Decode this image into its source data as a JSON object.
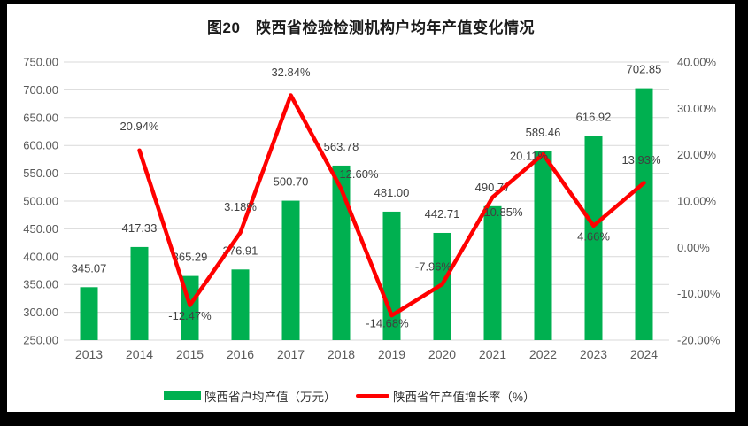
{
  "frame": {
    "background": "#000000",
    "canvas_background": "#ffffff"
  },
  "chart_data": {
    "type": "bar+line combo",
    "title": "图20　陕西省检验检测机构户均年产值变化情况",
    "categories": [
      "2013",
      "2014",
      "2015",
      "2016",
      "2017",
      "2018",
      "2019",
      "2020",
      "2021",
      "2022",
      "2023",
      "2024"
    ],
    "series": [
      {
        "name": "陕西省户均产值（万元）",
        "type": "bar",
        "axis": "left",
        "color": "#00B050",
        "values": [
          345.07,
          417.33,
          365.29,
          376.91,
          500.7,
          563.78,
          481.0,
          442.71,
          490.77,
          589.46,
          616.92,
          702.85
        ],
        "labels": [
          "345.07",
          "417.33",
          "365.29",
          "376.91",
          "500.70",
          "563.78",
          "481.00",
          "442.71",
          "490.77",
          "589.46",
          "616.92",
          "702.85"
        ]
      },
      {
        "name": "陕西省年产值增长率（%）",
        "type": "line",
        "axis": "right",
        "color": "#FF0000",
        "values": [
          null,
          20.94,
          -12.47,
          3.18,
          32.84,
          12.6,
          -14.68,
          -7.96,
          10.85,
          20.11,
          4.66,
          13.93
        ],
        "labels": [
          null,
          "20.94%",
          "-12.47%",
          "3.18%",
          "32.84%",
          "12.60%",
          "-14.68%",
          "-7.96%",
          "10.85%",
          "20.11%",
          "4.66%",
          "13.93%"
        ],
        "label_offsets": [
          null,
          [
            0,
            -27
          ],
          [
            0,
            12
          ],
          [
            0,
            -29
          ],
          [
            0,
            -26
          ],
          [
            20,
            -17
          ],
          [
            -5,
            9
          ],
          [
            -10,
            -20
          ],
          [
            12,
            17
          ],
          [
            -16,
            2
          ],
          [
            0,
            12
          ],
          [
            -3,
            -26
          ]
        ]
      }
    ],
    "left_axis": {
      "min": 250,
      "max": 750,
      "step": 50,
      "tick_labels": [
        "250.00",
        "300.00",
        "350.00",
        "400.00",
        "450.00",
        "500.00",
        "550.00",
        "600.00",
        "650.00",
        "700.00",
        "750.00"
      ]
    },
    "right_axis": {
      "min": -20,
      "max": 40,
      "step": 10,
      "tick_labels": [
        "-20.00%",
        "-10.00%",
        "0.00%",
        "10.00%",
        "20.00%",
        "30.00%",
        "40.00%"
      ]
    },
    "grid": true,
    "grid_color": "#D9D9D9",
    "tick_text_color": "#595959",
    "data_label_color": "#404040",
    "legend_position": "bottom"
  }
}
